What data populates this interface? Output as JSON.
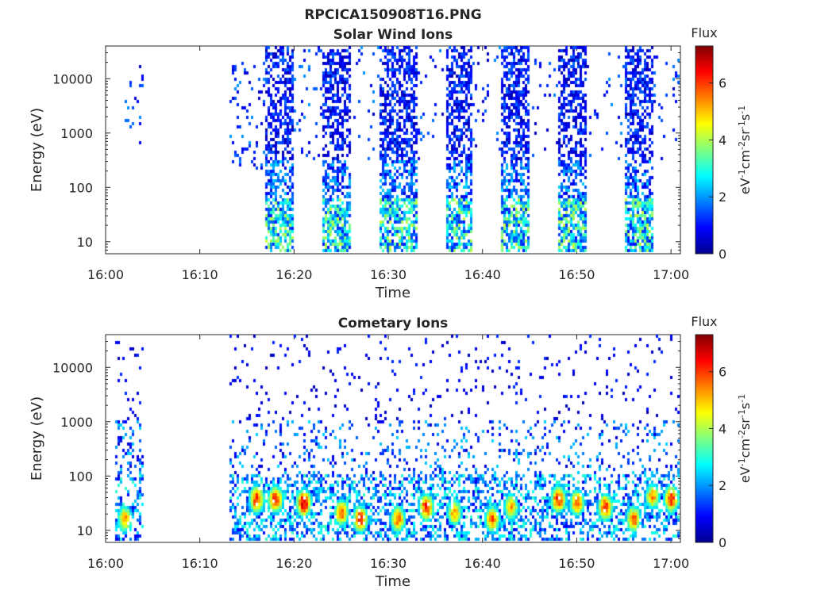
{
  "figure": {
    "title": "RPCICA150908T16.PNG"
  },
  "chart_data": [
    {
      "type": "heatmap",
      "title": "Solar Wind Ions",
      "xlabel": "Time",
      "ylabel": "Energy (eV)",
      "x_ticks": [
        "16:00",
        "16:10",
        "16:20",
        "16:30",
        "16:40",
        "16:50",
        "17:00"
      ],
      "x_range": [
        "16:00",
        "17:01"
      ],
      "y_scale": "log",
      "y_ticks": [
        10,
        100,
        1000,
        10000
      ],
      "y_range": [
        6,
        40000
      ],
      "colorbar": {
        "label_title": "Flux",
        "label_units": "eV-1cm-2sr-1s-1",
        "ticks": [
          0,
          2,
          4,
          6
        ],
        "range": [
          0,
          7.3
        ],
        "colormap": "jet"
      },
      "activity_intervals": [
        {
          "start": "16:02",
          "end": "16:04",
          "level": "sparse",
          "energy_range": [
            600,
            20000
          ]
        },
        {
          "start": "16:13",
          "end": "16:17",
          "level": "sparse",
          "energy_range": [
            200,
            20000
          ]
        },
        {
          "start": "16:17",
          "end": "16:20",
          "level": "dense",
          "energy_range": [
            6,
            40000
          ]
        },
        {
          "start": "16:23",
          "end": "16:26",
          "level": "dense",
          "energy_range": [
            6,
            40000
          ]
        },
        {
          "start": "16:29",
          "end": "16:33",
          "level": "dense",
          "energy_range": [
            6,
            40000
          ]
        },
        {
          "start": "16:36",
          "end": "16:39",
          "level": "dense",
          "energy_range": [
            6,
            40000
          ]
        },
        {
          "start": "16:42",
          "end": "16:45",
          "level": "dense",
          "energy_range": [
            6,
            40000
          ]
        },
        {
          "start": "16:48",
          "end": "16:51",
          "level": "dense",
          "energy_range": [
            6,
            40000
          ]
        },
        {
          "start": "16:55",
          "end": "16:58",
          "level": "dense",
          "energy_range": [
            6,
            40000
          ]
        }
      ]
    },
    {
      "type": "heatmap",
      "title": "Cometary Ions",
      "xlabel": "Time",
      "ylabel": "Energy (eV)",
      "x_ticks": [
        "16:00",
        "16:10",
        "16:20",
        "16:30",
        "16:40",
        "16:50",
        "17:00"
      ],
      "x_range": [
        "16:00",
        "17:01"
      ],
      "y_scale": "log",
      "y_ticks": [
        10,
        100,
        1000,
        10000
      ],
      "y_range": [
        6,
        40000
      ],
      "colorbar": {
        "label_title": "Flux",
        "label_units": "eV-1cm-2sr-1s-1",
        "ticks": [
          0,
          2,
          4,
          6
        ],
        "range": [
          0,
          7.3
        ],
        "colormap": "jet"
      },
      "hot_spots": [
        {
          "time": "16:02",
          "energy_ev": 15,
          "flux": 5.5
        },
        {
          "time": "16:16",
          "energy_ev": 35,
          "flux": 6.5
        },
        {
          "time": "16:18",
          "energy_ev": 35,
          "flux": 6.5
        },
        {
          "time": "16:21",
          "energy_ev": 30,
          "flux": 7.0
        },
        {
          "time": "16:25",
          "energy_ev": 20,
          "flux": 6.0
        },
        {
          "time": "16:27",
          "energy_ev": 15,
          "flux": 6.5
        },
        {
          "time": "16:31",
          "energy_ev": 15,
          "flux": 6.0
        },
        {
          "time": "16:34",
          "energy_ev": 25,
          "flux": 6.5
        },
        {
          "time": "16:37",
          "energy_ev": 20,
          "flux": 5.5
        },
        {
          "time": "16:41",
          "energy_ev": 15,
          "flux": 6.0
        },
        {
          "time": "16:43",
          "energy_ev": 25,
          "flux": 5.5
        },
        {
          "time": "16:48",
          "energy_ev": 35,
          "flux": 6.5
        },
        {
          "time": "16:50",
          "energy_ev": 30,
          "flux": 6.0
        },
        {
          "time": "16:53",
          "energy_ev": 25,
          "flux": 6.5
        },
        {
          "time": "16:56",
          "energy_ev": 15,
          "flux": 6.0
        },
        {
          "time": "16:58",
          "energy_ev": 40,
          "flux": 5.5
        },
        {
          "time": "17:00",
          "energy_ev": 35,
          "flux": 6.5
        }
      ]
    }
  ]
}
